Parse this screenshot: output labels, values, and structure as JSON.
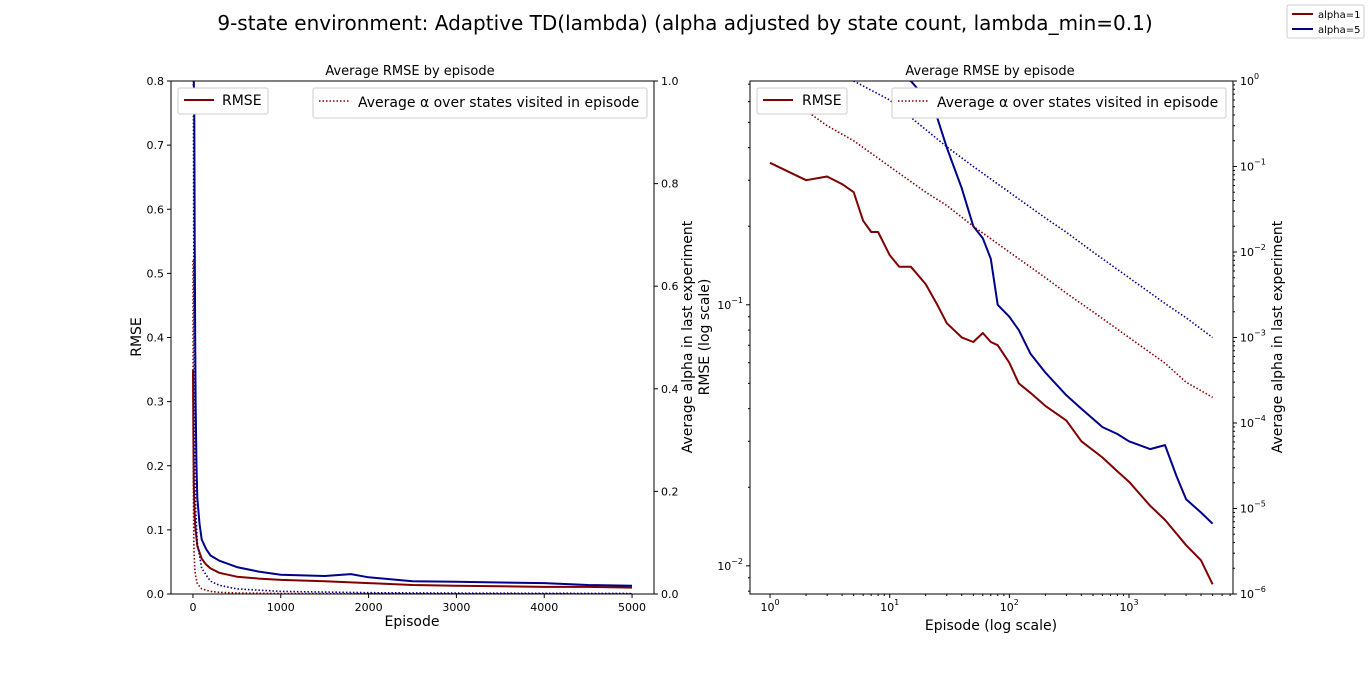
{
  "figure": {
    "suptitle": "9-state environment: Adaptive TD(lambda) (alpha adjusted by state count, lambda_min=0.1)",
    "legend": [
      {
        "label": "alpha=1",
        "color": "#800000"
      },
      {
        "label": "alpha=5",
        "color": "#00008b"
      }
    ]
  },
  "chart_data": [
    {
      "type": "line",
      "title": "Average RMSE by episode",
      "xlabel": "Episode",
      "ylabel": "RMSE",
      "y2label": "Average alpha in last experiment",
      "xscale": "linear",
      "yscale": "linear",
      "xlim": [
        -250,
        5250
      ],
      "ylim": [
        0,
        0.8
      ],
      "y2lim": [
        0,
        1.0
      ],
      "xticks": [
        0,
        1000,
        2000,
        3000,
        4000,
        5000
      ],
      "xtick_labels": [
        "0",
        "1000",
        "2000",
        "3000",
        "4000",
        "5000"
      ],
      "yticks": [
        0,
        0.1,
        0.2,
        0.3,
        0.4,
        0.5,
        0.6,
        0.7,
        0.8
      ],
      "ytick_labels": [
        "0.0",
        "0.1",
        "0.2",
        "0.3",
        "0.4",
        "0.5",
        "0.6",
        "0.7",
        "0.8"
      ],
      "y2ticks": [
        0,
        0.2,
        0.4,
        0.6,
        0.8,
        1.0
      ],
      "y2tick_labels": [
        "0.0",
        "0.2",
        "0.4",
        "0.6",
        "0.8",
        "1.0"
      ],
      "legend_left": {
        "label": "RMSE",
        "placement": "upper-left"
      },
      "legend_right": {
        "label": "Average α over states visited in episode",
        "placement": "upper-right"
      },
      "series": [
        {
          "name": "alpha=1",
          "axis": "y",
          "style": "solid",
          "color": "#800000",
          "x": [
            1,
            5,
            10,
            20,
            30,
            50,
            75,
            100,
            150,
            200,
            300,
            500,
            750,
            1000,
            1500,
            2000,
            2500,
            3000,
            3500,
            4000,
            4500,
            5000
          ],
          "y": [
            0.35,
            0.25,
            0.17,
            0.12,
            0.1,
            0.075,
            0.065,
            0.055,
            0.046,
            0.04,
            0.033,
            0.027,
            0.024,
            0.022,
            0.02,
            0.017,
            0.014,
            0.013,
            0.012,
            0.011,
            0.011,
            0.01
          ]
        },
        {
          "name": "alpha=5",
          "axis": "y",
          "style": "solid",
          "color": "#00008b",
          "x": [
            1,
            5,
            10,
            15,
            20,
            25,
            30,
            40,
            50,
            75,
            100,
            150,
            200,
            300,
            500,
            750,
            1000,
            1500,
            1800,
            2000,
            2500,
            3000,
            3500,
            4000,
            4500,
            5000
          ],
          "y": [
            0.8,
            0.8,
            0.8,
            0.75,
            0.55,
            0.4,
            0.3,
            0.2,
            0.15,
            0.11,
            0.085,
            0.07,
            0.06,
            0.052,
            0.042,
            0.035,
            0.03,
            0.028,
            0.031,
            0.026,
            0.02,
            0.019,
            0.018,
            0.017,
            0.014,
            0.013
          ]
        },
        {
          "name": "alpha=1",
          "axis": "y2",
          "style": "dotted",
          "color": "#800000",
          "x": [
            1,
            2,
            3,
            5,
            10,
            20,
            30,
            50,
            100,
            200,
            300,
            500,
            1000,
            2000,
            3000,
            5000
          ],
          "y": [
            0.65,
            0.45,
            0.3,
            0.2,
            0.1,
            0.05,
            0.035,
            0.02,
            0.01,
            0.005,
            0.0033,
            0.002,
            0.001,
            0.0005,
            0.0003,
            0.0002
          ]
        },
        {
          "name": "alpha=5",
          "axis": "y2",
          "style": "dotted",
          "color": "#00008b",
          "x": [
            1,
            2,
            3,
            5,
            10,
            20,
            30,
            50,
            100,
            200,
            300,
            500,
            1000,
            2000,
            3000,
            5000
          ],
          "y": [
            1.0,
            1.0,
            1.0,
            1.0,
            0.6,
            0.27,
            0.17,
            0.1,
            0.05,
            0.025,
            0.017,
            0.01,
            0.005,
            0.0025,
            0.0017,
            0.001
          ]
        }
      ]
    },
    {
      "type": "line",
      "title": "Average RMSE by episode",
      "xlabel": "Episode (log scale)",
      "ylabel": "RMSE (log scale)",
      "y2label": "Average alpha in last experiment",
      "xscale": "log",
      "yscale": "log",
      "y2scale": "log",
      "xlim": [
        0.68,
        7400
      ],
      "ylim": [
        0.0078,
        0.72
      ],
      "y2lim": [
        1e-06,
        1
      ],
      "xticks": [
        1,
        10,
        100,
        1000
      ],
      "xtick_labels": [
        {
          "base": "10",
          "exp": "0"
        },
        {
          "base": "10",
          "exp": "1"
        },
        {
          "base": "10",
          "exp": "2"
        },
        {
          "base": "10",
          "exp": "3"
        }
      ],
      "yticks": [
        0.01,
        0.1
      ],
      "ytick_labels": [
        {
          "base": "10",
          "exp": "−2"
        },
        {
          "base": "10",
          "exp": "−1"
        }
      ],
      "y2ticks": [
        1e-06,
        1e-05,
        0.0001,
        0.001,
        0.01,
        0.1,
        1
      ],
      "y2tick_labels": [
        {
          "base": "10",
          "exp": "−6"
        },
        {
          "base": "10",
          "exp": "−5"
        },
        {
          "base": "10",
          "exp": "−4"
        },
        {
          "base": "10",
          "exp": "−3"
        },
        {
          "base": "10",
          "exp": "−2"
        },
        {
          "base": "10",
          "exp": "−1"
        },
        {
          "base": "10",
          "exp": "0"
        }
      ],
      "legend_left": {
        "label": "RMSE",
        "placement": "upper-left"
      },
      "legend_right": {
        "label": "Average α over states visited in episode",
        "placement": "upper-right"
      },
      "series": [
        {
          "name": "alpha=1",
          "axis": "y",
          "style": "solid",
          "color": "#800000",
          "x": [
            1,
            2,
            3,
            4,
            5,
            6,
            7,
            8,
            10,
            12,
            15,
            20,
            25,
            30,
            40,
            50,
            60,
            70,
            80,
            100,
            120,
            150,
            200,
            300,
            400,
            600,
            800,
            1000,
            1500,
            2000,
            3000,
            4000,
            5000
          ],
          "y": [
            0.35,
            0.3,
            0.31,
            0.29,
            0.27,
            0.21,
            0.19,
            0.19,
            0.155,
            0.14,
            0.14,
            0.12,
            0.1,
            0.085,
            0.075,
            0.072,
            0.078,
            0.072,
            0.07,
            0.06,
            0.05,
            0.046,
            0.041,
            0.036,
            0.03,
            0.026,
            0.023,
            0.021,
            0.017,
            0.015,
            0.012,
            0.0105,
            0.0085
          ]
        },
        {
          "name": "alpha=5",
          "axis": "y",
          "style": "solid",
          "color": "#00008b",
          "x": [
            12,
            15,
            20,
            25,
            30,
            40,
            50,
            60,
            70,
            80,
            100,
            120,
            150,
            200,
            300,
            400,
            600,
            800,
            1000,
            1500,
            2000,
            2500,
            3000,
            4000,
            5000
          ],
          "y": [
            0.75,
            0.72,
            0.62,
            0.52,
            0.4,
            0.28,
            0.2,
            0.18,
            0.15,
            0.1,
            0.09,
            0.08,
            0.065,
            0.055,
            0.045,
            0.04,
            0.034,
            0.032,
            0.03,
            0.028,
            0.029,
            0.022,
            0.018,
            0.016,
            0.0145
          ]
        },
        {
          "name": "alpha=1",
          "axis": "y2",
          "style": "dotted",
          "color": "#800000",
          "x": [
            1,
            2,
            3,
            5,
            10,
            20,
            30,
            50,
            100,
            200,
            300,
            500,
            1000,
            2000,
            3000,
            5000
          ],
          "y": [
            0.65,
            0.45,
            0.3,
            0.2,
            0.1,
            0.05,
            0.035,
            0.02,
            0.01,
            0.005,
            0.0033,
            0.002,
            0.001,
            0.0005,
            0.0003,
            0.0002
          ]
        },
        {
          "name": "alpha=5",
          "axis": "y2",
          "style": "dotted",
          "color": "#00008b",
          "x": [
            5,
            10,
            20,
            30,
            50,
            100,
            200,
            300,
            500,
            1000,
            2000,
            3000,
            5000
          ],
          "y": [
            1.0,
            0.6,
            0.27,
            0.17,
            0.1,
            0.05,
            0.025,
            0.017,
            0.01,
            0.005,
            0.0025,
            0.0017,
            0.001
          ]
        }
      ]
    }
  ]
}
